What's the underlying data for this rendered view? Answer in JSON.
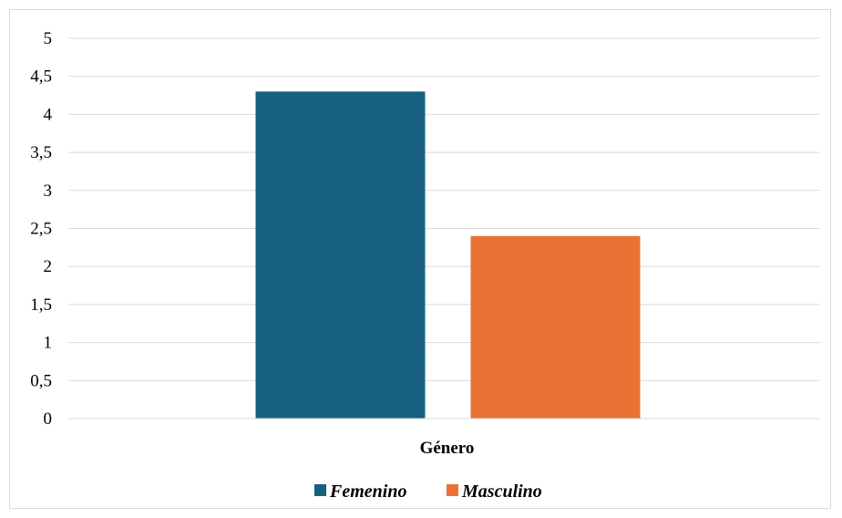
{
  "chart_data": {
    "type": "bar",
    "categories": [
      "Género"
    ],
    "series": [
      {
        "name": "Femenino",
        "values": [
          4.3
        ],
        "color": "#17607f"
      },
      {
        "name": "Masculino",
        "values": [
          2.4
        ],
        "color": "#ea7234"
      }
    ],
    "y_ticks": [
      "0",
      "0,5",
      "1",
      "1,5",
      "2",
      "2,5",
      "3",
      "3,5",
      "4",
      "4,5",
      "5"
    ],
    "ylim": [
      0,
      5
    ],
    "grid": true,
    "legend_position": "bottom"
  }
}
